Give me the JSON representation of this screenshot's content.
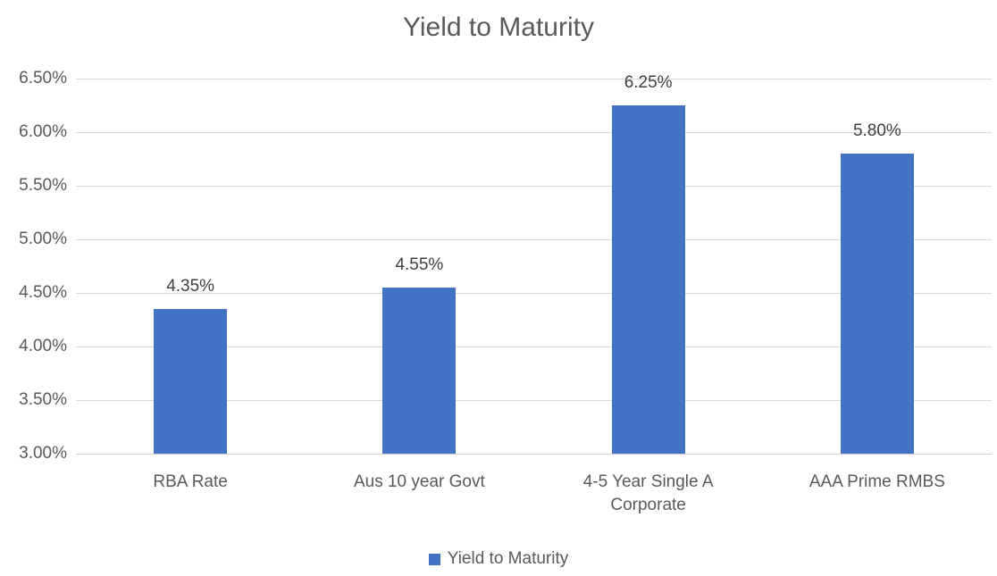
{
  "chart_data": {
    "type": "bar",
    "title": "Yield to Maturity",
    "categories": [
      "RBA Rate",
      "Aus 10 year Govt",
      "4-5 Year Single A Corporate",
      "AAA Prime RMBS"
    ],
    "values": [
      4.35,
      4.55,
      6.25,
      5.8
    ],
    "data_labels": [
      "4.35%",
      "4.55%",
      "6.25%",
      "5.80%"
    ],
    "xlabel": "",
    "ylabel": "",
    "ylim": [
      3.0,
      6.5
    ],
    "ytick_step": 0.5,
    "ytick_labels": [
      "3.00%",
      "3.50%",
      "4.00%",
      "4.50%",
      "5.00%",
      "5.50%",
      "6.00%",
      "6.50%"
    ],
    "grid": true,
    "legend_position": "bottom",
    "legend": [
      {
        "label": "Yield to Maturity",
        "color": "#4472c4"
      }
    ],
    "colors": {
      "bar": "#4472c4",
      "title_text": "#595959",
      "axis_text": "#595959",
      "data_label_text": "#404040",
      "gridline": "#d9d9d9"
    }
  }
}
